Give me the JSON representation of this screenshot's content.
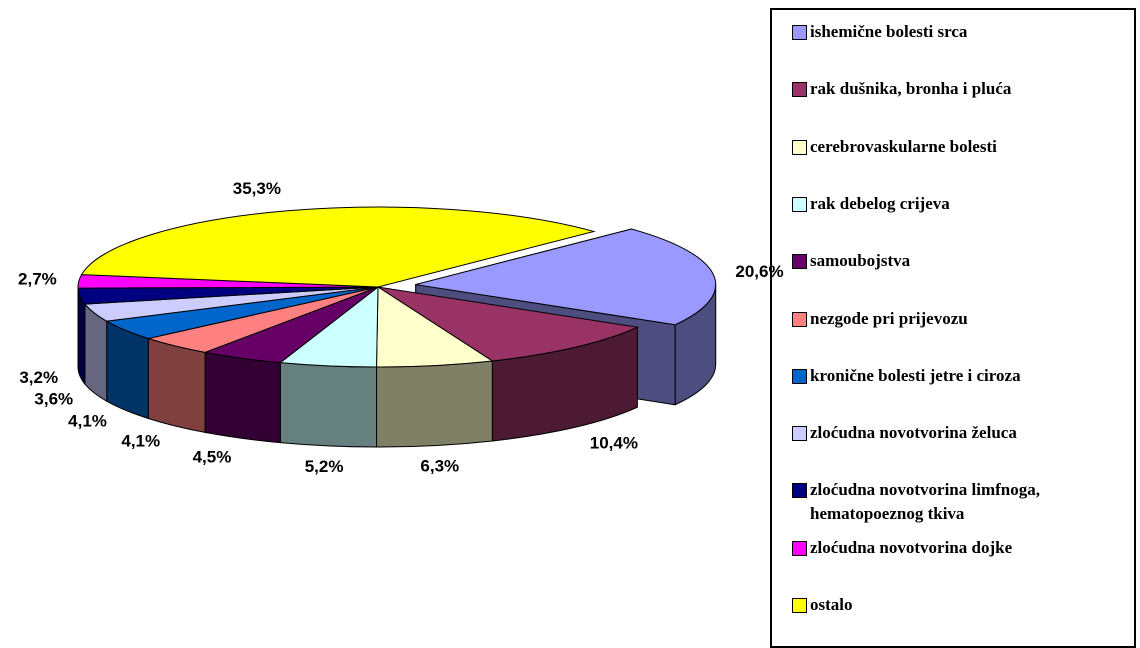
{
  "chart_data": {
    "type": "pie3d",
    "categories": [
      "ishemične bolesti srca",
      "rak dušnika, bronha i pluća",
      "cerebrovaskularne bolesti",
      "rak debelog crijeva",
      "samoubojstva",
      "nezgode pri prijevozu",
      "kronične bolesti jetre i ciroza",
      "zloćudna novotvorina želuca",
      "zloćudna novotvorina limfnoga, hematopoeznog tkiva",
      "zloćudna novotvorina dojke",
      "ostalo"
    ],
    "values": [
      20.6,
      10.4,
      6.3,
      5.2,
      4.5,
      4.1,
      4.1,
      3.6,
      3.2,
      2.7,
      35.3
    ],
    "value_labels": [
      "20,6%",
      "10,4%",
      "6,3%",
      "5,2%",
      "4,5%",
      "4,1%",
      "4,1%",
      "3,6%",
      "3,2%",
      "2,7%",
      "35,3%"
    ],
    "colors": [
      "#9999ff",
      "#993366",
      "#ffffcc",
      "#ccffff",
      "#660066",
      "#ff8080",
      "#0066cc",
      "#ccccff",
      "#000080",
      "#ff00ff",
      "#ffff00"
    ],
    "legend": "right"
  }
}
